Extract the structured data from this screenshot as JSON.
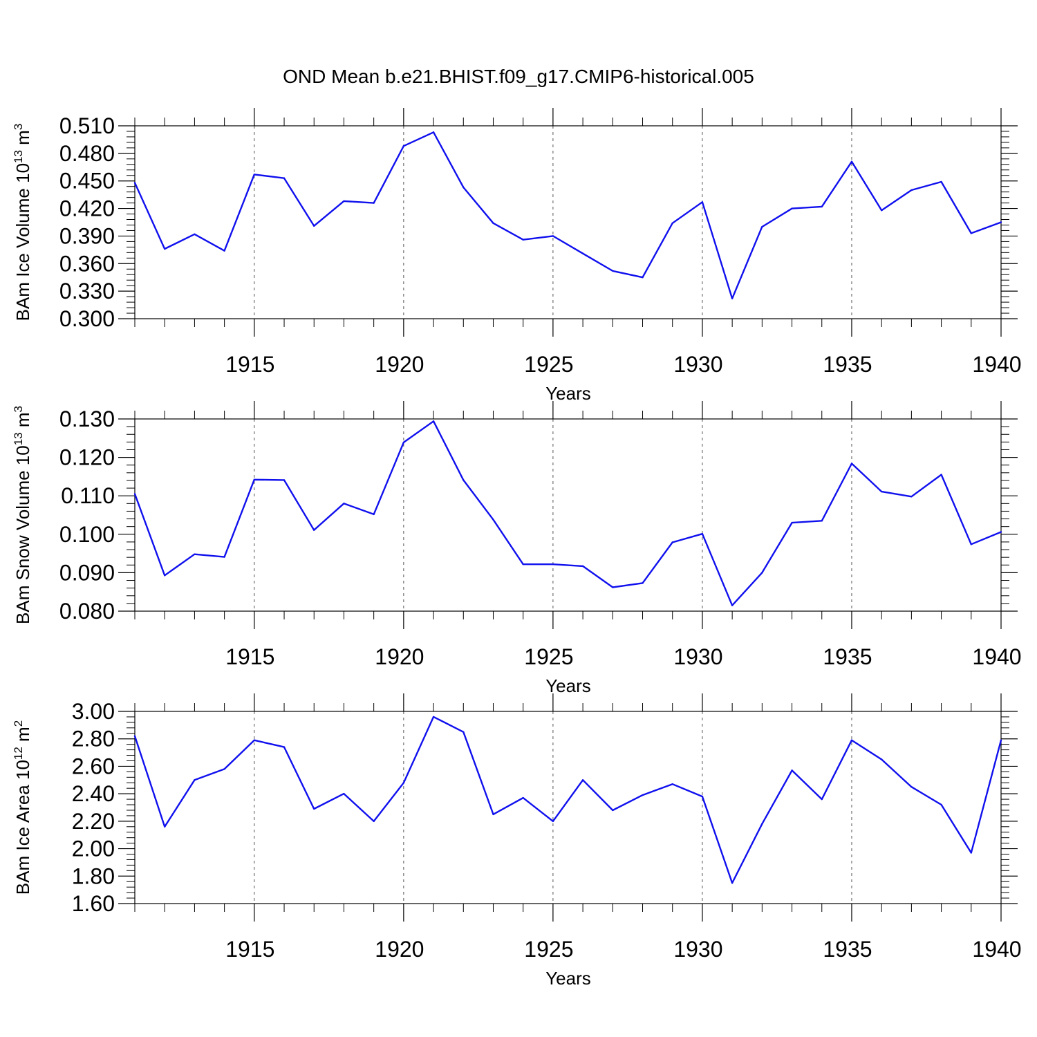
{
  "title": "OND Mean b.e21.BHIST.f09_g17.CMIP6-historical.005",
  "colors": {
    "line": "#1010ee",
    "axis": "#000000",
    "grid": "#555555"
  },
  "chart_data": [
    {
      "type": "line",
      "ylabel": {
        "text": "BAm Ice Volume 10",
        "exp": "13",
        "unit_text": " m",
        "unit_exp": "3"
      },
      "xlabel": "Years",
      "xlim": [
        1911,
        1940
      ],
      "ylim": [
        0.3,
        0.51
      ],
      "xticks": [
        1915,
        1920,
        1925,
        1930,
        1935,
        1940
      ],
      "yticks": [
        "0.300",
        "0.330",
        "0.360",
        "0.390",
        "0.420",
        "0.450",
        "0.480",
        "0.510"
      ],
      "x": [
        1911,
        1912,
        1913,
        1914,
        1915,
        1916,
        1917,
        1918,
        1919,
        1920,
        1921,
        1922,
        1923,
        1924,
        1925,
        1926,
        1927,
        1928,
        1929,
        1930,
        1931,
        1932,
        1933,
        1934,
        1935,
        1936,
        1937,
        1938,
        1939,
        1940
      ],
      "values": [
        0.448,
        0.376,
        0.392,
        0.374,
        0.457,
        0.453,
        0.401,
        0.428,
        0.426,
        0.488,
        0.503,
        0.443,
        0.404,
        0.386,
        0.39,
        0.371,
        0.352,
        0.345,
        0.404,
        0.427,
        0.322,
        0.4,
        0.42,
        0.422,
        0.471,
        0.418,
        0.44,
        0.449,
        0.393,
        0.405
      ]
    },
    {
      "type": "line",
      "ylabel": {
        "text": "BAm Snow Volume 10",
        "exp": "13",
        "unit_text": " m",
        "unit_exp": "3"
      },
      "xlabel": "Years",
      "xlim": [
        1911,
        1940
      ],
      "ylim": [
        0.08,
        0.13
      ],
      "xticks": [
        1915,
        1920,
        1925,
        1930,
        1935,
        1940
      ],
      "yticks": [
        "0.080",
        "0.090",
        "0.100",
        "0.110",
        "0.120",
        "0.130"
      ],
      "x": [
        1911,
        1912,
        1913,
        1914,
        1915,
        1916,
        1917,
        1918,
        1919,
        1920,
        1921,
        1922,
        1923,
        1924,
        1925,
        1926,
        1927,
        1928,
        1929,
        1930,
        1931,
        1932,
        1933,
        1934,
        1935,
        1936,
        1937,
        1938,
        1939,
        1940
      ],
      "values": [
        0.1105,
        0.0893,
        0.0948,
        0.0941,
        0.1142,
        0.1141,
        0.1011,
        0.108,
        0.1052,
        0.1239,
        0.1294,
        0.1141,
        0.1038,
        0.0922,
        0.0922,
        0.0917,
        0.0862,
        0.0873,
        0.0979,
        0.1001,
        0.0815,
        0.09,
        0.103,
        0.1035,
        0.1184,
        0.1111,
        0.1098,
        0.1155,
        0.0974,
        0.1006
      ]
    },
    {
      "type": "line",
      "ylabel": {
        "text": "BAm Ice Area 10",
        "exp": "12",
        "unit_text": " m",
        "unit_exp": "2"
      },
      "xlabel": "Years",
      "xlim": [
        1911,
        1940
      ],
      "ylim": [
        1.6,
        3.0
      ],
      "xticks": [
        1915,
        1920,
        1925,
        1930,
        1935,
        1940
      ],
      "yticks": [
        "1.60",
        "1.80",
        "2.00",
        "2.20",
        "2.40",
        "2.60",
        "2.80",
        "3.00"
      ],
      "x": [
        1911,
        1912,
        1913,
        1914,
        1915,
        1916,
        1917,
        1918,
        1919,
        1920,
        1921,
        1922,
        1923,
        1924,
        1925,
        1926,
        1927,
        1928,
        1929,
        1930,
        1931,
        1932,
        1933,
        1934,
        1935,
        1936,
        1937,
        1938,
        1939,
        1940
      ],
      "values": [
        2.82,
        2.16,
        2.5,
        2.58,
        2.79,
        2.74,
        2.29,
        2.4,
        2.2,
        2.48,
        2.96,
        2.85,
        2.25,
        2.37,
        2.2,
        2.5,
        2.28,
        2.39,
        2.47,
        2.38,
        1.75,
        2.18,
        2.57,
        2.36,
        2.79,
        2.65,
        2.45,
        2.32,
        1.97,
        2.79
      ]
    }
  ]
}
